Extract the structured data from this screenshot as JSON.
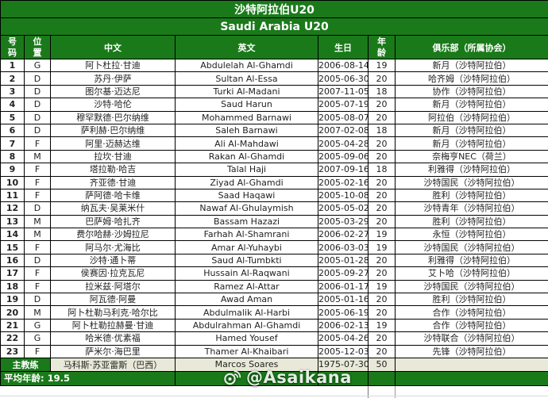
{
  "title_cn": "沙特阿拉伯U20",
  "title_en": "Saudi Arabia U20",
  "columns": {
    "number": "号码",
    "position": "位置",
    "name_cn": "中文",
    "name_en": "英文",
    "birthday": "生日",
    "age": "年龄",
    "club": "俱乐部（所属协会）"
  },
  "players": [
    {
      "no": "1",
      "pos": "G",
      "cn": "阿卜杜拉·甘迪",
      "en": "Abdulelah Al-Ghamdi",
      "birth": "2006-08-14",
      "age": "19",
      "club": "新月（沙特阿拉伯）"
    },
    {
      "no": "2",
      "pos": "D",
      "cn": "苏丹·伊萨",
      "en": "Sultan Al-Essa",
      "birth": "2005-06-30",
      "age": "20",
      "club": "哈齐姆（沙特阿拉伯）"
    },
    {
      "no": "3",
      "pos": "D",
      "cn": "图尔基·迈达尼",
      "en": "Turki Al-Madani",
      "birth": "2007-11-05",
      "age": "18",
      "club": "协作（沙特阿拉伯）"
    },
    {
      "no": "4",
      "pos": "D",
      "cn": "沙特·哈伦",
      "en": "Saud Harun",
      "birth": "2005-07-19",
      "age": "20",
      "club": "新月（沙特阿拉伯）"
    },
    {
      "no": "5",
      "pos": "D",
      "cn": "穆罕默德·巴尔纳维",
      "en": "Mohammed Barnawi",
      "birth": "2005-08-07",
      "age": "20",
      "club": "阿拉伯（沙特阿拉伯）"
    },
    {
      "no": "6",
      "pos": "D",
      "cn": "萨利赫·巴尔纳维",
      "en": "Saleh Barnawi",
      "birth": "2007-02-08",
      "age": "18",
      "club": "新月（沙特阿拉伯）"
    },
    {
      "no": "7",
      "pos": "F",
      "cn": "阿里·迈赫达维",
      "en": "Ali Al-Mahdawi",
      "birth": "2005-04-28",
      "age": "20",
      "club": "新月（沙特阿拉伯）"
    },
    {
      "no": "8",
      "pos": "M",
      "cn": "拉坎·甘迪",
      "en": "Rakan Al-Ghamdi",
      "birth": "2005-09-06",
      "age": "20",
      "club": "奈梅亨NEC（荷兰）"
    },
    {
      "no": "9",
      "pos": "F",
      "cn": "塔拉勒·哈吉",
      "en": "Talal Haji",
      "birth": "2007-09-16",
      "age": "18",
      "club": "利雅得（沙特阿拉伯）"
    },
    {
      "no": "10",
      "pos": "F",
      "cn": "齐亚德·甘迪",
      "en": "Ziyad Al-Ghamdi",
      "birth": "2005-02-16",
      "age": "20",
      "club": "沙特国民（沙特阿拉伯）"
    },
    {
      "no": "11",
      "pos": "F",
      "cn": "萨阿德·哈卡维",
      "en": "Saad Haqawi",
      "birth": "2005-10-08",
      "age": "20",
      "club": "胜利（沙特阿拉伯）"
    },
    {
      "no": "12",
      "pos": "D",
      "cn": "纳瓦夫·吴莱米什",
      "en": "Nawaf Al-Ghulaymish",
      "birth": "2005-05-02",
      "age": "20",
      "club": "沙特青年（沙特阿拉伯）"
    },
    {
      "no": "13",
      "pos": "M",
      "cn": "巴萨姆·哈扎齐",
      "en": "Bassam Hazazi",
      "birth": "2005-03-29",
      "age": "20",
      "club": "胜利（沙特阿拉伯）"
    },
    {
      "no": "14",
      "pos": "M",
      "cn": "费尔哈赫·沙姆拉尼",
      "en": "Farhah Al-Shamrani",
      "birth": "2006-02-27",
      "age": "19",
      "club": "永恒（沙特阿拉伯）"
    },
    {
      "no": "15",
      "pos": "F",
      "cn": "阿马尔·尤海比",
      "en": "Amar Al-Yuhaybi",
      "birth": "2006-03-03",
      "age": "19",
      "club": "沙特国民（沙特阿拉伯）"
    },
    {
      "no": "16",
      "pos": "D",
      "cn": "沙特·通卜蒂",
      "en": "Saud Al-Tumbkti",
      "birth": "2005-01-28",
      "age": "20",
      "club": "利雅得（沙特阿拉伯）"
    },
    {
      "no": "17",
      "pos": "F",
      "cn": "侯赛因·拉克瓦尼",
      "en": "Hussain Al-Raqwani",
      "birth": "2005-09-27",
      "age": "20",
      "club": "艾卜哈（沙特阿拉伯）"
    },
    {
      "no": "18",
      "pos": "F",
      "cn": "拉米兹·阿塔尔",
      "en": "Ramez Al-Attar",
      "birth": "2006-01-17",
      "age": "19",
      "club": "沙特国民（沙特阿拉伯）"
    },
    {
      "no": "19",
      "pos": "D",
      "cn": "阿瓦德·阿曼",
      "en": "Awad Aman",
      "birth": "2005-01-16",
      "age": "20",
      "club": "胜利（沙特阿拉伯）"
    },
    {
      "no": "20",
      "pos": "M",
      "cn": "阿卜杜勒马利克·哈尔比",
      "en": "Abdulmalik Al-Harbi",
      "birth": "2005-06-19",
      "age": "20",
      "club": "合作（沙特阿拉伯）"
    },
    {
      "no": "21",
      "pos": "G",
      "cn": "阿卜杜勒拉赫曼·甘迪",
      "en": "Abdulrahman Al-Ghamdi",
      "birth": "2006-02-13",
      "age": "19",
      "club": "合作（沙特阿拉伯）"
    },
    {
      "no": "22",
      "pos": "G",
      "cn": "哈米德·优素福",
      "en": "Hamed Yousef",
      "birth": "2005-04-26",
      "age": "20",
      "club": "沙特联合（沙特阿拉伯）"
    },
    {
      "no": "23",
      "pos": "F",
      "cn": "萨米尔·海巴里",
      "en": "Thamer Al-Khaibari",
      "birth": "2005-12-03",
      "age": "20",
      "club": "先锋（沙特阿拉伯）"
    }
  ],
  "coach": {
    "label": "主教练",
    "cn": "马科斯·苏亚雷斯（巴西）",
    "en": "Marcos Soares",
    "birth": "1975-07-30",
    "age": "50",
    "club": ""
  },
  "footer": {
    "average_age_label": "平均年龄:",
    "average_age_value": "19.5"
  },
  "watermark": {
    "icon": "weibo-icon",
    "handle": "@Asaikana"
  },
  "colors": {
    "table_green": "#1a7a1a",
    "coach_row_bg": "#e8e9d8",
    "border": "#000000"
  }
}
